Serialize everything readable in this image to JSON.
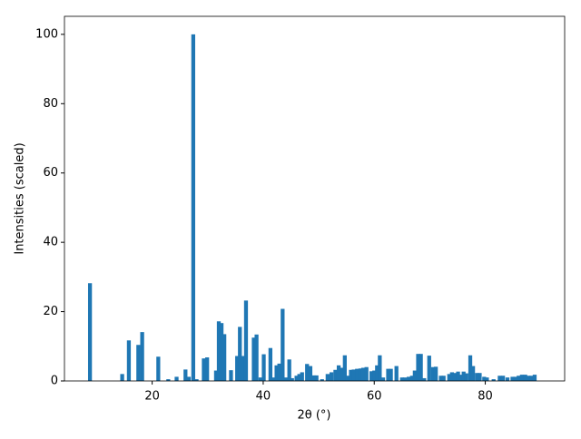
{
  "chart_data": {
    "type": "bar",
    "xlabel": "2θ (°)",
    "ylabel": "Intensities (scaled)",
    "color": "#1f77b4",
    "x": [
      8.8,
      14.6,
      15.8,
      17.5,
      18.2,
      21.1,
      22.9,
      24.4,
      26.0,
      26.6,
      27.4,
      28.0,
      29.3,
      29.9,
      31.5,
      32.0,
      32.5,
      33.0,
      34.2,
      35.3,
      35.8,
      36.3,
      36.9,
      38.3,
      38.8,
      39.5,
      40.1,
      41.3,
      41.9,
      42.4,
      42.9,
      43.5,
      44.1,
      44.7,
      45.2,
      46.0,
      46.5,
      47.0,
      47.9,
      48.5,
      49.1,
      49.6,
      50.6,
      51.6,
      52.3,
      53.0,
      53.6,
      54.1,
      54.7,
      55.2,
      55.8,
      56.3,
      56.9,
      57.5,
      58.0,
      58.6,
      59.5,
      60.0,
      60.5,
      61.0,
      61.6,
      62.5,
      63.0,
      64.0,
      65.0,
      65.5,
      66.2,
      66.8,
      67.3,
      67.9,
      68.4,
      69.0,
      69.9,
      70.6,
      71.1,
      72.0,
      72.5,
      73.5,
      74.0,
      74.5,
      75.1,
      75.6,
      76.1,
      76.6,
      77.3,
      77.8,
      78.5,
      79.0,
      79.8,
      80.3,
      81.5,
      82.6,
      83.2,
      84.0,
      84.9,
      85.4,
      86.0,
      86.6,
      87.2,
      87.8,
      88.3,
      88.9
    ],
    "values": [
      28.2,
      2,
      11.7,
      10.4,
      14.1,
      7,
      0.5,
      1.2,
      3.3,
      1.2,
      100,
      0.5,
      6.5,
      6.8,
      3,
      17.2,
      16.7,
      13.5,
      3.1,
      7.2,
      15.6,
      7.2,
      23.2,
      12.5,
      13.4,
      1,
      7.7,
      9.5,
      1,
      4.5,
      5,
      20.8,
      1,
      6.2,
      0.8,
      1.5,
      2,
      2.5,
      4.9,
      4.3,
      1.6,
      1.6,
      0.5,
      2,
      2.5,
      3.2,
      4.5,
      3.8,
      7.4,
      1.5,
      3.2,
      3.3,
      3.5,
      3.6,
      3.8,
      4,
      2.8,
      3,
      4.5,
      7.4,
      1,
      3.5,
      3.5,
      4.3,
      1,
      1,
      1.2,
      1.5,
      3,
      7.8,
      7.8,
      0.8,
      7.3,
      4,
      4.1,
      1.5,
      1.5,
      2,
      2.5,
      2.3,
      2.7,
      1.8,
      2.7,
      2.2,
      7.4,
      4.3,
      2.3,
      2.3,
      1.2,
      1,
      0.5,
      1.5,
      1.5,
      1,
      1.2,
      1.2,
      1.5,
      1.8,
      1.8,
      1.5,
      1.5,
      1.8
    ],
    "xlim": [
      4.2,
      94.3
    ],
    "ylim": [
      0,
      105.2
    ],
    "xticks": [
      20,
      40,
      60,
      80
    ],
    "yticks": [
      0,
      20,
      40,
      60,
      80,
      100
    ]
  }
}
